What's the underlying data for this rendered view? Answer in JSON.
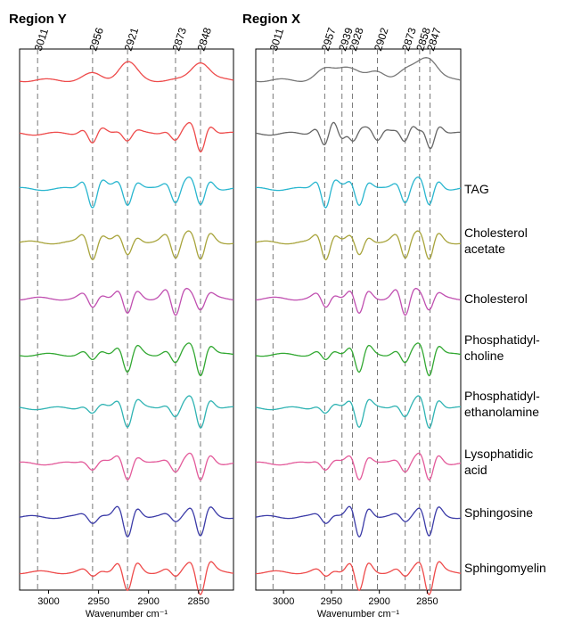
{
  "chart_data": [
    {
      "type": "line",
      "title": "Region Y",
      "xlabel": "Wavenumber cm⁻¹",
      "ylabel": "",
      "x_direction": "reversed",
      "xlim": [
        3029,
        2815
      ],
      "xticks": [
        3000,
        2950,
        2900,
        2850
      ],
      "tick_labels": [
        "3000",
        "2950",
        "2900",
        "2850"
      ],
      "peak_markers": [
        {
          "label": "3011",
          "x": 3011
        },
        {
          "label": "2956",
          "x": 2956
        },
        {
          "label": "2921",
          "x": 2921
        },
        {
          "label": "2873",
          "x": 2873
        },
        {
          "label": "2848",
          "x": 2848
        }
      ],
      "series": [
        {
          "color": "#ee4b4b",
          "kind": "absorbance",
          "peaks": [
            [
              2956,
              0.35
            ],
            [
              2921,
              1.0
            ],
            [
              2848,
              1.05
            ]
          ]
        },
        {
          "color": "#ee4b4b",
          "kind": "derivative",
          "peaks": [
            [
              2956,
              0.55
            ],
            [
              2921,
              0.35
            ],
            [
              2873,
              0.35
            ],
            [
              2848,
              1.0
            ]
          ]
        },
        {
          "color": "#29b6cf",
          "kind": "derivative",
          "peaks": [
            [
              2956,
              1.0
            ],
            [
              2921,
              0.85
            ],
            [
              2873,
              0.7
            ],
            [
              2848,
              0.95
            ]
          ]
        },
        {
          "color": "#a8a43c",
          "kind": "derivative",
          "peaks": [
            [
              2956,
              0.9
            ],
            [
              2921,
              0.7
            ],
            [
              2873,
              0.85
            ],
            [
              2848,
              1.0
            ]
          ]
        },
        {
          "color": "#c04fb0",
          "kind": "derivative",
          "peaks": [
            [
              2956,
              0.5
            ],
            [
              2921,
              0.9
            ],
            [
              2873,
              1.0
            ],
            [
              2848,
              0.6
            ]
          ]
        },
        {
          "color": "#32a832",
          "kind": "derivative",
          "peaks": [
            [
              2956,
              0.35
            ],
            [
              2921,
              1.0
            ],
            [
              2873,
              0.5
            ],
            [
              2848,
              1.1
            ]
          ]
        },
        {
          "color": "#2fb3b3",
          "kind": "derivative",
          "peaks": [
            [
              2956,
              0.3
            ],
            [
              2921,
              1.0
            ],
            [
              2873,
              0.45
            ],
            [
              2848,
              1.1
            ]
          ]
        },
        {
          "color": "#e35a9a",
          "kind": "derivative",
          "peaks": [
            [
              2956,
              0.3
            ],
            [
              2921,
              0.85
            ],
            [
              2873,
              0.4
            ],
            [
              2848,
              1.0
            ]
          ]
        },
        {
          "color": "#3c3ca8",
          "kind": "derivative",
          "peaks": [
            [
              2956,
              0.3
            ],
            [
              2921,
              1.15
            ],
            [
              2873,
              0.25
            ],
            [
              2848,
              1.1
            ]
          ]
        },
        {
          "color": "#ee4b4b",
          "kind": "derivative",
          "peaks": [
            [
              2956,
              0.25
            ],
            [
              2921,
              1.1
            ],
            [
              2873,
              0.3
            ],
            [
              2848,
              1.2
            ]
          ]
        }
      ]
    },
    {
      "type": "line",
      "title": "Region X",
      "xlabel": "Wavenumber cm⁻¹",
      "ylabel": "",
      "x_direction": "reversed",
      "xlim": [
        3029,
        2815
      ],
      "xticks": [
        3000,
        2950,
        2900,
        2850
      ],
      "tick_labels": [
        "3000",
        "2950",
        "2900",
        "2850"
      ],
      "peak_markers": [
        {
          "label": "3011",
          "x": 3011
        },
        {
          "label": "2957",
          "x": 2957
        },
        {
          "label": "2939",
          "x": 2939
        },
        {
          "label": "2928",
          "x": 2928
        },
        {
          "label": "2902",
          "x": 2902
        },
        {
          "label": "2873",
          "x": 2873
        },
        {
          "label": "2858",
          "x": 2858
        },
        {
          "label": "2847",
          "x": 2847
        }
      ],
      "series": [
        {
          "color": "#777777",
          "kind": "absorbance",
          "peaks": [
            [
              2957,
              0.55
            ],
            [
              2939,
              0.5
            ],
            [
              2928,
              0.45
            ],
            [
              2902,
              0.5
            ],
            [
              2873,
              0.45
            ],
            [
              2858,
              0.55
            ],
            [
              2847,
              1.0
            ]
          ]
        },
        {
          "color": "#666666",
          "kind": "derivative",
          "peaks": [
            [
              2957,
              0.7
            ],
            [
              2939,
              0.6
            ],
            [
              2928,
              0.6
            ],
            [
              2902,
              0.45
            ],
            [
              2873,
              0.5
            ],
            [
              2858,
              0.45
            ],
            [
              2847,
              1.0
            ]
          ]
        },
        {
          "color": "#29b6cf",
          "kind": "derivative",
          "peaks": [
            [
              2956,
              1.0
            ],
            [
              2921,
              0.85
            ],
            [
              2873,
              0.7
            ],
            [
              2848,
              0.95
            ]
          ]
        },
        {
          "color": "#a8a43c",
          "kind": "derivative",
          "peaks": [
            [
              2956,
              0.9
            ],
            [
              2921,
              0.7
            ],
            [
              2873,
              0.85
            ],
            [
              2848,
              1.0
            ]
          ]
        },
        {
          "color": "#c04fb0",
          "kind": "derivative",
          "peaks": [
            [
              2956,
              0.5
            ],
            [
              2921,
              0.9
            ],
            [
              2873,
              1.0
            ],
            [
              2848,
              0.6
            ]
          ]
        },
        {
          "color": "#32a832",
          "kind": "derivative",
          "peaks": [
            [
              2956,
              0.35
            ],
            [
              2921,
              1.0
            ],
            [
              2873,
              0.5
            ],
            [
              2848,
              1.1
            ]
          ]
        },
        {
          "color": "#2fb3b3",
          "kind": "derivative",
          "peaks": [
            [
              2956,
              0.3
            ],
            [
              2921,
              1.0
            ],
            [
              2873,
              0.45
            ],
            [
              2848,
              1.1
            ]
          ]
        },
        {
          "color": "#e35a9a",
          "kind": "derivative",
          "peaks": [
            [
              2956,
              0.3
            ],
            [
              2921,
              0.85
            ],
            [
              2873,
              0.4
            ],
            [
              2848,
              1.0
            ]
          ]
        },
        {
          "color": "#3c3ca8",
          "kind": "derivative",
          "peaks": [
            [
              2956,
              0.3
            ],
            [
              2921,
              1.15
            ],
            [
              2873,
              0.25
            ],
            [
              2848,
              1.1
            ]
          ]
        },
        {
          "color": "#ee4b4b",
          "kind": "derivative",
          "peaks": [
            [
              2956,
              0.25
            ],
            [
              2921,
              1.1
            ],
            [
              2873,
              0.3
            ],
            [
              2848,
              1.2
            ]
          ]
        }
      ]
    }
  ],
  "legend": [
    {
      "rows": [
        "TAG"
      ],
      "series_index": 2
    },
    {
      "rows": [
        "Cholesterol",
        "acetate"
      ],
      "series_index": 3
    },
    {
      "rows": [
        "Cholesterol"
      ],
      "series_index": 4
    },
    {
      "rows": [
        "Phosphatidyl-",
        "choline"
      ],
      "series_index": 5
    },
    {
      "rows": [
        "Phosphatidyl-",
        "ethanolamine"
      ],
      "series_index": 6
    },
    {
      "rows": [
        "Lysophatidic",
        "acid"
      ],
      "series_index": 7
    },
    {
      "rows": [
        "Sphingosine"
      ],
      "series_index": 8
    },
    {
      "rows": [
        "Sphingomyelin"
      ],
      "series_index": 9
    }
  ]
}
